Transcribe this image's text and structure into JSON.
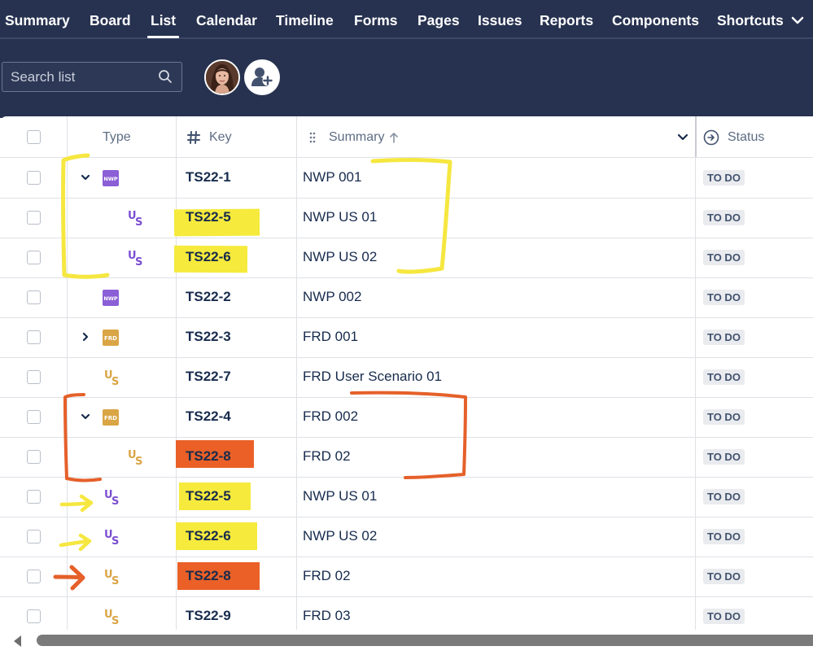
{
  "nav": {
    "tabs": [
      {
        "label": "Summary"
      },
      {
        "label": "Board"
      },
      {
        "label": "List"
      },
      {
        "label": "Calendar"
      },
      {
        "label": "Timeline"
      },
      {
        "label": "Forms"
      },
      {
        "label": "Pages"
      },
      {
        "label": "Issues"
      },
      {
        "label": "Reports"
      },
      {
        "label": "Components"
      },
      {
        "label": "Shortcuts"
      }
    ],
    "active_tab": "List"
  },
  "search": {
    "placeholder": "Search list"
  },
  "table": {
    "headers": {
      "type": "Type",
      "key": "Key",
      "summary": "Summary",
      "status": "Status"
    },
    "rows": [
      {
        "key": "TS22-1",
        "summary": "NWP 001",
        "status": "TO DO",
        "type_icon": "nwp-icon",
        "expand": "expanded"
      },
      {
        "key": "TS22-5",
        "summary": "NWP US 01",
        "status": "TO DO",
        "type_icon": "us-icon-purple",
        "highlight": "yellow"
      },
      {
        "key": "TS22-6",
        "summary": "NWP US 02",
        "status": "TO DO",
        "type_icon": "us-icon-purple",
        "highlight": "yellow"
      },
      {
        "key": "TS22-2",
        "summary": "NWP 002",
        "status": "TO DO",
        "type_icon": "nwp-icon"
      },
      {
        "key": "TS22-3",
        "summary": "FRD 001",
        "status": "TO DO",
        "type_icon": "frd-icon",
        "expand": "collapsed"
      },
      {
        "key": "TS22-7",
        "summary": "FRD User Scenario 01",
        "status": "TO DO",
        "type_icon": "us-icon-gold"
      },
      {
        "key": "TS22-4",
        "summary": "FRD 002",
        "status": "TO DO",
        "type_icon": "frd-icon",
        "expand": "expanded"
      },
      {
        "key": "TS22-8",
        "summary": "FRD 02",
        "status": "TO DO",
        "type_icon": "us-icon-gold",
        "highlight": "orange"
      },
      {
        "key": "TS22-5",
        "summary": "NWP US 01",
        "status": "TO DO",
        "type_icon": "us-icon-purple",
        "highlight": "yellow"
      },
      {
        "key": "TS22-6",
        "summary": "NWP US 02",
        "status": "TO DO",
        "type_icon": "us-icon-purple",
        "highlight": "yellow"
      },
      {
        "key": "TS22-8",
        "summary": "FRD 02",
        "status": "TO DO",
        "type_icon": "us-icon-gold",
        "highlight": "orange"
      },
      {
        "key": "TS22-9",
        "summary": "FRD 03",
        "status": "TO DO",
        "type_icon": "us-icon-gold"
      }
    ]
  },
  "colors": {
    "topbar": "#273250",
    "nwp": "#8b5fd6",
    "frd": "#d9a545",
    "us_purple": "#7b4fd1",
    "us_gold": "#d9a545",
    "highlight_yellow": "#f6ea3c",
    "highlight_orange": "#ea6027",
    "annotation_yellow": "#f6e740",
    "annotation_orange": "#e5602a"
  }
}
